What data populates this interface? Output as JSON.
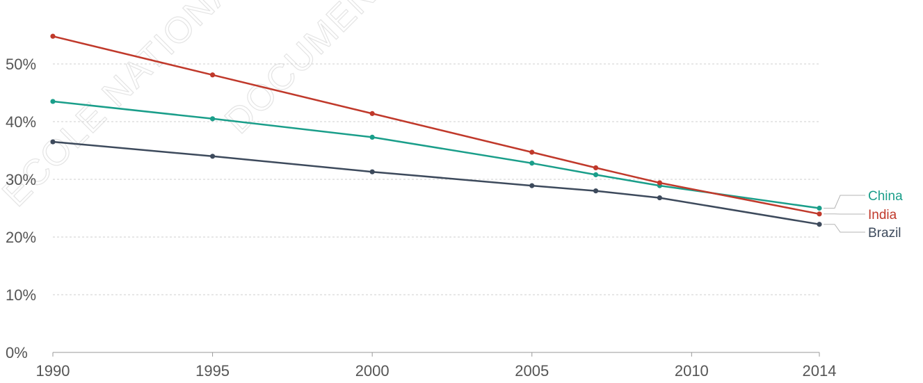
{
  "watermark": {
    "text1": "ECOLE NATIONALE",
    "text2": "DOCUMENT"
  },
  "chart_data": {
    "type": "line",
    "x": [
      1990,
      1995,
      2000,
      2005,
      2007,
      2009,
      2014
    ],
    "x_ticks": [
      "1990",
      "1995",
      "2000",
      "2005",
      "2010",
      "2014"
    ],
    "x_tick_values": [
      1990,
      1995,
      2000,
      2005,
      2010,
      2014
    ],
    "y_ticks": [
      "0%",
      "10%",
      "20%",
      "30%",
      "40%",
      "50%"
    ],
    "y_tick_values": [
      0,
      10,
      20,
      30,
      40,
      50
    ],
    "xlim": [
      1990,
      2014
    ],
    "ylim": [
      0,
      55
    ],
    "grid": "horizontal dashed",
    "legend": "labels at line ends (right)",
    "series": [
      {
        "name": "China",
        "color": "#1a9e8a",
        "values": [
          43.5,
          40.5,
          37.3,
          32.8,
          30.8,
          28.9,
          25.0
        ]
      },
      {
        "name": "India",
        "color": "#c0392b",
        "values": [
          54.8,
          48.1,
          41.4,
          34.7,
          32.0,
          29.4,
          24.0
        ]
      },
      {
        "name": "Brazil",
        "color": "#3d4a5c",
        "values": [
          36.5,
          34.0,
          31.3,
          28.9,
          28.0,
          26.8,
          22.2
        ]
      }
    ]
  }
}
